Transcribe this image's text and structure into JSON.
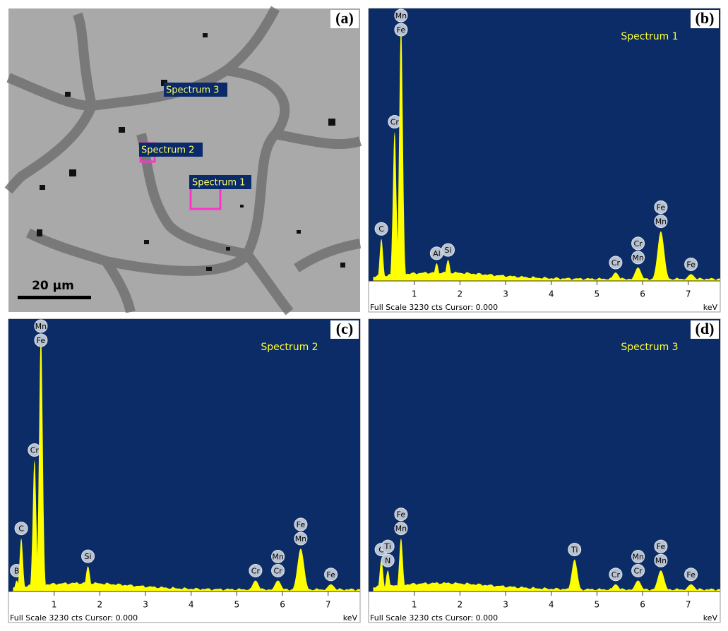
{
  "image_panel": {
    "label": "(a)",
    "scale_bar": "20 µm",
    "markers": [
      "Spectrum 1",
      "Spectrum 2",
      "Spectrum 3"
    ]
  },
  "chart_data": [
    {
      "type": "spectrum",
      "panel_label": "(b)",
      "title": "Spectrum 1",
      "footer": "Full Scale 3230 cts Cursor: 0.000",
      "x_unit": "keV",
      "xlim": [
        0,
        7.7
      ],
      "ylim": [
        0,
        3230
      ],
      "xticks": [
        1,
        2,
        3,
        4,
        5,
        6,
        7
      ],
      "color": "#ffff00",
      "background": "#0b2c66",
      "peaks": [
        {
          "x": 0.28,
          "height": 500,
          "labels": [
            "C"
          ]
        },
        {
          "x": 0.57,
          "height": 1770,
          "labels": [
            "Cr"
          ]
        },
        {
          "x": 0.71,
          "height": 3040,
          "labels": [
            "Mn",
            "Fe"
          ]
        },
        {
          "x": 1.49,
          "height": 210,
          "labels": [
            "Al"
          ]
        },
        {
          "x": 1.74,
          "height": 250,
          "labels": [
            "Si"
          ]
        },
        {
          "x": 5.41,
          "height": 100,
          "labels": [
            "Cr"
          ]
        },
        {
          "x": 5.9,
          "height": 160,
          "labels": [
            "Cr",
            "Mn"
          ]
        },
        {
          "x": 6.4,
          "height": 590,
          "labels": [
            "Fe",
            "Mn"
          ]
        },
        {
          "x": 7.06,
          "height": 80,
          "labels": [
            "Fe"
          ]
        }
      ]
    },
    {
      "type": "spectrum",
      "panel_label": "(c)",
      "title": "Spectrum 2",
      "footer": "Full Scale 3230 cts Cursor: 0.000",
      "x_unit": "keV",
      "xlim": [
        0,
        7.7
      ],
      "ylim": [
        0,
        3230
      ],
      "xticks": [
        1,
        2,
        3,
        4,
        5,
        6,
        7
      ],
      "color": "#ffff00",
      "background": "#0b2c66",
      "peaks": [
        {
          "x": 0.18,
          "height": 130,
          "labels": [
            "B"
          ]
        },
        {
          "x": 0.28,
          "height": 630,
          "labels": [
            "C"
          ]
        },
        {
          "x": 0.57,
          "height": 1560,
          "labels": [
            "Cr"
          ]
        },
        {
          "x": 0.71,
          "height": 3080,
          "labels": [
            "Mn",
            "Fe"
          ]
        },
        {
          "x": 1.74,
          "height": 300,
          "labels": [
            "Si"
          ]
        },
        {
          "x": 5.41,
          "height": 130,
          "labels": [
            "Cr"
          ]
        },
        {
          "x": 5.9,
          "height": 130,
          "labels": [
            "Mn",
            "Cr"
          ]
        },
        {
          "x": 6.4,
          "height": 510,
          "labels": [
            "Fe",
            "Mn"
          ]
        },
        {
          "x": 7.06,
          "height": 85,
          "labels": [
            "Fe"
          ]
        }
      ]
    },
    {
      "type": "spectrum",
      "panel_label": "(d)",
      "title": "Spectrum 3",
      "footer": "Full Scale 3230 cts Cursor: 0.000",
      "x_unit": "keV",
      "xlim": [
        0,
        7.7
      ],
      "ylim": [
        0,
        3230
      ],
      "xticks": [
        1,
        2,
        3,
        4,
        5,
        6,
        7
      ],
      "color": "#ffff00",
      "background": "#0b2c66",
      "peaks": [
        {
          "x": 0.28,
          "height": 380,
          "labels": [
            "C"
          ]
        },
        {
          "x": 0.42,
          "height": 250,
          "labels": [
            "Ti",
            "N"
          ]
        },
        {
          "x": 0.71,
          "height": 630,
          "labels": [
            "Fe",
            "Mn"
          ]
        },
        {
          "x": 4.51,
          "height": 380,
          "labels": [
            "Ti"
          ]
        },
        {
          "x": 5.41,
          "height": 85,
          "labels": [
            "Cr"
          ]
        },
        {
          "x": 5.9,
          "height": 130,
          "labels": [
            "Mn",
            "Cr"
          ]
        },
        {
          "x": 6.4,
          "height": 250,
          "labels": [
            "Fe",
            "Mn"
          ]
        },
        {
          "x": 7.06,
          "height": 85,
          "labels": [
            "Fe"
          ]
        }
      ]
    }
  ]
}
